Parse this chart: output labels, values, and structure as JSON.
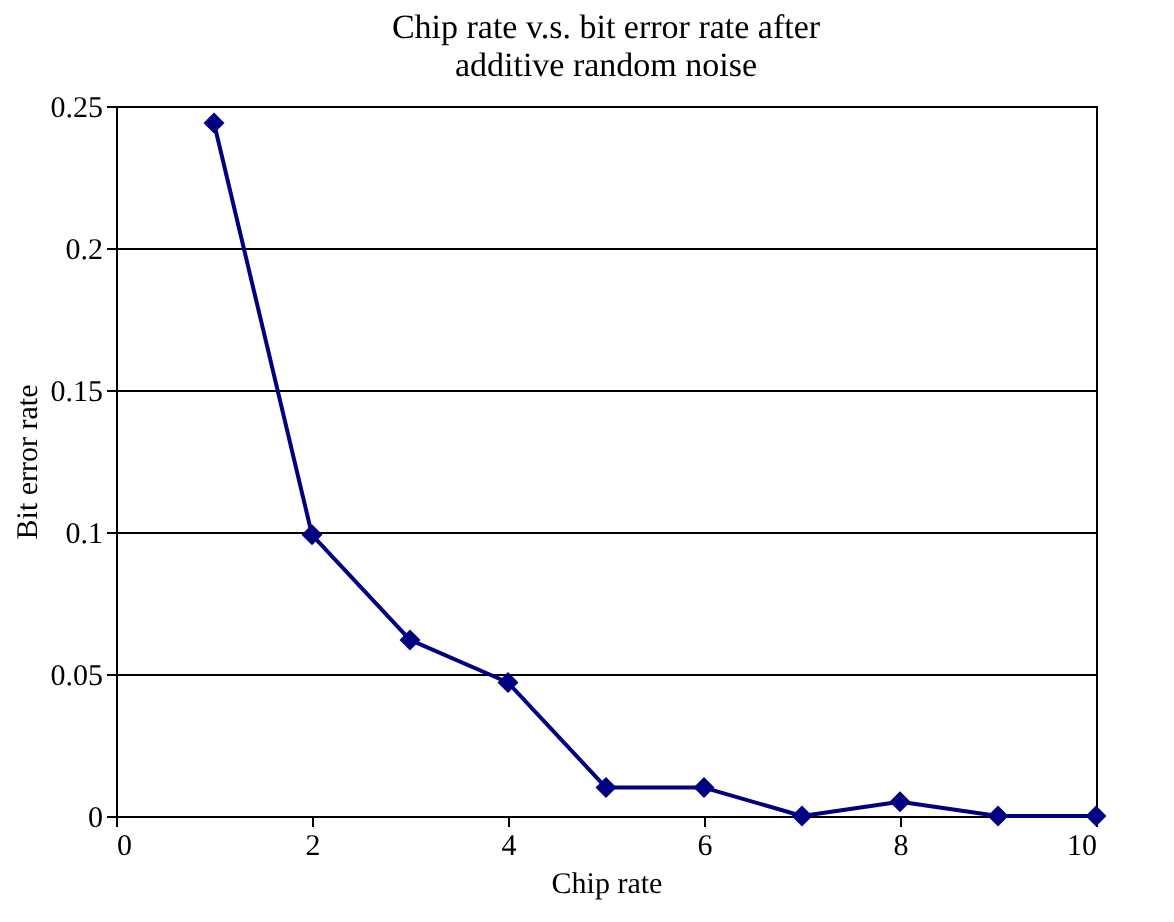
{
  "chart_data": {
    "type": "line",
    "title": "Chip rate v.s. bit error rate after\nadditive random noise",
    "xlabel": "Chip rate",
    "ylabel": "Bit error rate",
    "x": [
      1,
      2,
      3,
      4,
      5,
      6,
      7,
      8,
      9,
      10
    ],
    "series": [
      {
        "color": "#000080",
        "values": [
          0.244,
          0.099,
          0.062,
          0.047,
          0.01,
          0.01,
          0.0,
          0.005,
          0.0,
          0.0
        ]
      }
    ],
    "xlim": [
      0,
      10
    ],
    "xticks": [
      0,
      2,
      4,
      6,
      8,
      10
    ],
    "ylim": [
      0,
      0.25
    ],
    "yticks": [
      0,
      0.05,
      0.1,
      0.15,
      0.2,
      0.25
    ],
    "grid": "y",
    "marker": "diamond",
    "line_style": "solid"
  }
}
